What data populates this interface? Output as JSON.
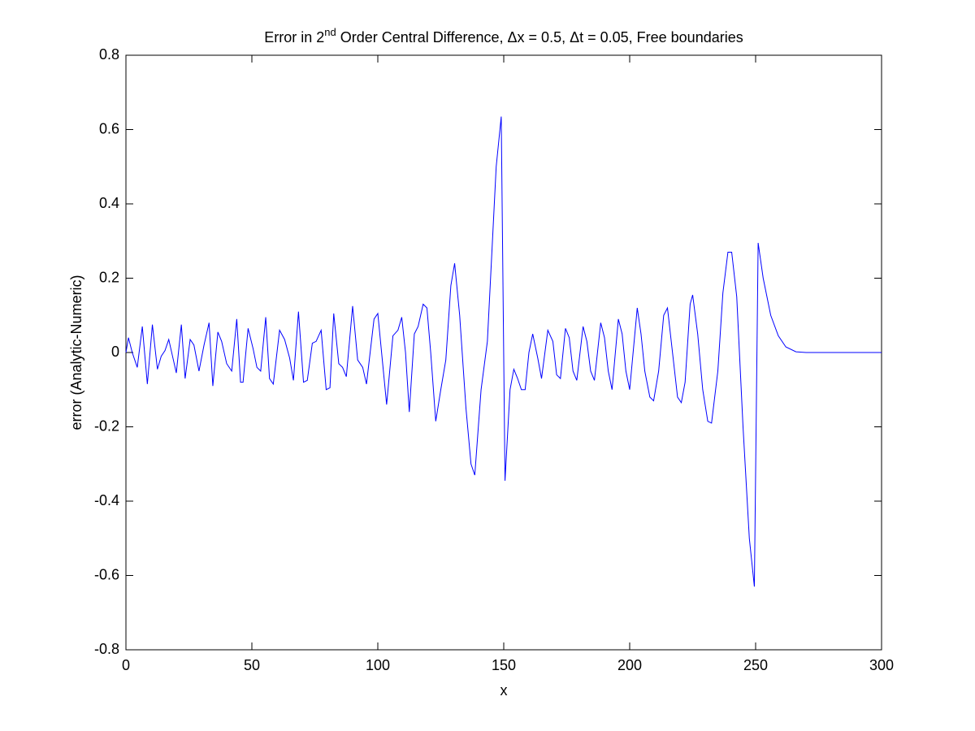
{
  "chart_data": {
    "type": "line",
    "title": "Error in 2",
    "title_superscript": "nd",
    "title_rest": " Order Central Difference, Δx = 0.5, Δt = 0.05, Free boundaries",
    "x_label": "x",
    "y_label": "error (Analytic-Numeric)",
    "xlim": [
      0,
      300
    ],
    "ylim": [
      -0.8,
      0.8
    ],
    "xticks": [
      0,
      50,
      100,
      150,
      200,
      250,
      300
    ],
    "yticks": [
      -0.8,
      -0.6,
      -0.4,
      -0.2,
      0,
      0.2,
      0.4,
      0.6,
      0.8
    ],
    "grid": false,
    "series": [
      {
        "color": "#0000ff",
        "x": [
          0,
          1,
          2.5,
          4.5,
          6.5,
          8.5,
          10.5,
          12.5,
          14,
          15.5,
          17,
          18.5,
          20,
          22,
          23.5,
          25.5,
          27,
          29,
          31,
          33,
          34.5,
          36.5,
          38,
          40,
          42,
          44,
          45.5,
          46.5,
          48.5,
          50.5,
          52,
          53.5,
          55.5,
          57,
          58.5,
          61,
          63,
          65,
          66.5,
          68.5,
          70.5,
          72,
          74,
          75.5,
          77.5,
          79.5,
          81,
          82.5,
          84.5,
          86,
          87.5,
          90,
          92,
          94,
          95.5,
          98.5,
          100,
          101.5,
          103.5,
          106,
          108,
          109.5,
          111,
          112.5,
          114.5,
          116,
          118,
          119.5,
          121,
          123,
          125,
          127,
          129,
          130.5,
          132.5,
          135,
          137,
          138.5,
          141,
          143.5,
          147,
          149,
          150.5,
          152.5,
          154,
          155.5,
          157,
          158.5,
          160,
          161.5,
          163.5,
          165,
          167.5,
          169.5,
          171,
          172.5,
          174.5,
          176,
          177.5,
          179,
          181.5,
          183,
          184.5,
          186,
          188.5,
          190,
          191.5,
          193,
          195.5,
          197,
          198.5,
          200,
          203,
          204.5,
          206,
          208,
          209.5,
          211.5,
          213.5,
          215,
          217,
          219,
          220.5,
          222,
          224,
          225,
          227,
          229,
          231,
          232.5,
          235,
          237,
          239,
          240.5,
          242.5,
          245,
          247.5,
          249.5,
          251,
          253,
          256,
          259,
          262,
          266,
          270,
          300
        ],
        "values": [
          0,
          0.04,
          0,
          -0.04,
          0.07,
          -0.085,
          0.075,
          -0.045,
          -0.01,
          0.005,
          0.035,
          -0.01,
          -0.055,
          0.075,
          -0.07,
          0.035,
          0.02,
          -0.05,
          0.02,
          0.08,
          -0.09,
          0.055,
          0.03,
          -0.03,
          -0.05,
          0.09,
          -0.08,
          -0.08,
          0.065,
          0.01,
          -0.04,
          -0.05,
          0.095,
          -0.07,
          -0.085,
          0.06,
          0.035,
          -0.015,
          -0.075,
          0.11,
          -0.08,
          -0.075,
          0.025,
          0.03,
          0.06,
          -0.1,
          -0.095,
          0.105,
          -0.03,
          -0.04,
          -0.065,
          0.125,
          -0.02,
          -0.04,
          -0.085,
          0.09,
          0.105,
          0,
          -0.14,
          0.045,
          0.06,
          0.095,
          0,
          -0.16,
          0.05,
          0.07,
          0.13,
          0.12,
          0,
          -0.185,
          -0.1,
          -0.02,
          0.18,
          0.24,
          0.1,
          -0.15,
          -0.3,
          -0.33,
          -0.1,
          0.03,
          0.5,
          0.635,
          -0.345,
          -0.1,
          -0.045,
          -0.07,
          -0.1,
          -0.1,
          0,
          0.05,
          -0.015,
          -0.07,
          0.06,
          0.03,
          -0.06,
          -0.07,
          0.065,
          0.04,
          -0.05,
          -0.075,
          0.07,
          0.03,
          -0.05,
          -0.075,
          0.08,
          0.04,
          -0.05,
          -0.1,
          0.09,
          0.05,
          -0.05,
          -0.1,
          0.12,
          0.05,
          -0.05,
          -0.12,
          -0.13,
          -0.05,
          0.1,
          0.12,
          0,
          -0.12,
          -0.135,
          -0.08,
          0.13,
          0.155,
          0.05,
          -0.1,
          -0.185,
          -0.19,
          -0.05,
          0.16,
          0.27,
          0.27,
          0.15,
          -0.2,
          -0.5,
          -0.63,
          0.295,
          0.2,
          0.1,
          0.045,
          0.015,
          0.002,
          0,
          0
        ]
      }
    ]
  }
}
